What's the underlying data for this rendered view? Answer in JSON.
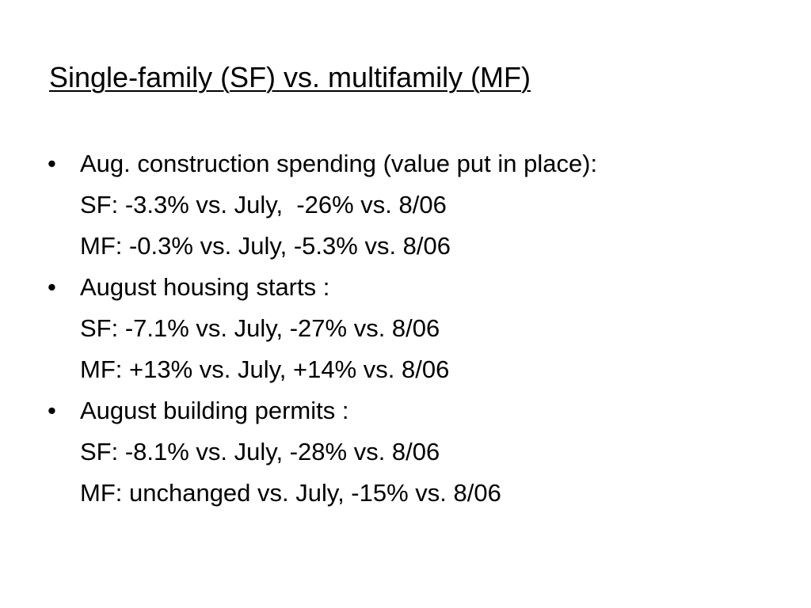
{
  "slide": {
    "title": "Single-family (SF) vs. multifamily (MF)",
    "bullet_glyph": "•",
    "items": [
      {
        "label": "Aug. construction spending (value put in place):",
        "sub": [
          "SF: -3.3% vs. July,  -26% vs. 8/06",
          "MF: -0.3% vs. July, -5.3% vs. 8/06"
        ]
      },
      {
        "label": "August housing starts :",
        "sub": [
          "SF: -7.1% vs. July, -27% vs. 8/06",
          "MF: +13% vs. July, +14% vs. 8/06"
        ]
      },
      {
        "label": "August building permits :",
        "sub": [
          "SF: -8.1% vs. July, -28% vs. 8/06",
          "MF: unchanged vs. July, -15% vs. 8/06"
        ]
      }
    ]
  }
}
